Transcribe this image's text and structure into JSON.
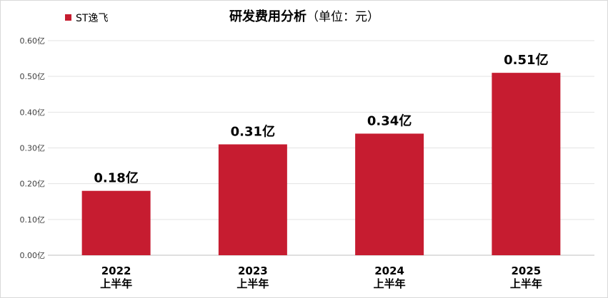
{
  "chart_data": {
    "type": "bar",
    "title": "研发费用分析",
    "subtitle": "（单位：元）",
    "legend": {
      "position": "top-left",
      "label": "ST逸飞"
    },
    "categories": [
      [
        "2022",
        "上半年"
      ],
      [
        "2023",
        "上半年"
      ],
      [
        "2024",
        "上半年"
      ],
      [
        "2025",
        "上半年"
      ]
    ],
    "series": [
      {
        "name": "ST逸飞",
        "color": "#C61C30",
        "values": [
          0.18,
          0.31,
          0.34,
          0.51
        ],
        "labels": [
          "0.18亿",
          "0.31亿",
          "0.34亿",
          "0.51亿"
        ]
      }
    ],
    "ylim": [
      0,
      0.6
    ],
    "yticks": [
      0,
      0.1,
      0.2,
      0.3,
      0.4,
      0.5,
      0.6
    ],
    "ytick_labels": [
      "0.00亿",
      "0.10亿",
      "0.20亿",
      "0.30亿",
      "0.40亿",
      "0.50亿",
      "0.60亿"
    ],
    "grid": true,
    "xlabel": "",
    "ylabel": ""
  }
}
